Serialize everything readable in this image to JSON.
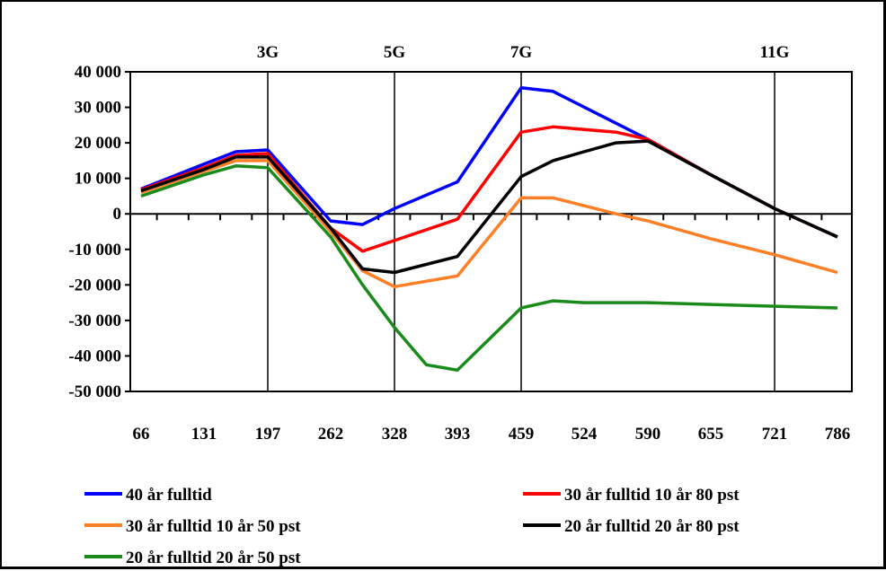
{
  "chart_data": {
    "type": "line",
    "title": "",
    "xlabel": "",
    "ylabel": "",
    "x_ticks": [
      "66",
      "131",
      "197",
      "262",
      "328",
      "393",
      "459",
      "524",
      "590",
      "655",
      "721",
      "786"
    ],
    "x_start": 66,
    "x_end": 786,
    "ylim": [
      -50000,
      40000
    ],
    "y_step": 10000,
    "y_tick_labels": [
      "40 000",
      "30 000",
      "20 000",
      "10 000",
      "0",
      "-10 000",
      "-20 000",
      "-30 000",
      "-40 000",
      "-50 000"
    ],
    "grid": false,
    "generation_markers": [
      {
        "label": "3G",
        "x": 197
      },
      {
        "label": "5G",
        "x": 328
      },
      {
        "label": "7G",
        "x": 459
      },
      {
        "label": "11G",
        "x": 721
      }
    ],
    "legend_position": "bottom",
    "series": [
      {
        "name": "40 år fulltid",
        "color": "#0000ff",
        "points": [
          [
            66,
            7000
          ],
          [
            131,
            14000
          ],
          [
            164,
            17500
          ],
          [
            197,
            18000
          ],
          [
            262,
            -2000
          ],
          [
            295,
            -3000
          ],
          [
            328,
            1500
          ],
          [
            393,
            9000
          ],
          [
            459,
            35500
          ],
          [
            492,
            34500
          ],
          [
            590,
            21000
          ],
          [
            655,
            11000
          ],
          [
            721,
            1500
          ],
          [
            786,
            -6500
          ]
        ]
      },
      {
        "name": "30 år fulltid 10 år 80 pst",
        "color": "#ff0000",
        "points": [
          [
            66,
            6800
          ],
          [
            131,
            13000
          ],
          [
            164,
            16500
          ],
          [
            197,
            17000
          ],
          [
            262,
            -4000
          ],
          [
            295,
            -10500
          ],
          [
            328,
            -7500
          ],
          [
            393,
            -1500
          ],
          [
            459,
            23000
          ],
          [
            492,
            24500
          ],
          [
            557,
            23000
          ],
          [
            590,
            21000
          ],
          [
            655,
            11000
          ],
          [
            721,
            1500
          ],
          [
            786,
            -6500
          ]
        ]
      },
      {
        "name": "30 år fulltid 10 år 50 pst",
        "color": "#ff7f27",
        "points": [
          [
            66,
            6000
          ],
          [
            131,
            12000
          ],
          [
            164,
            15000
          ],
          [
            197,
            15000
          ],
          [
            262,
            -5000
          ],
          [
            295,
            -16000
          ],
          [
            328,
            -20500
          ],
          [
            393,
            -17500
          ],
          [
            459,
            4500
          ],
          [
            492,
            4500
          ],
          [
            557,
            0
          ],
          [
            590,
            -2000
          ],
          [
            655,
            -7000
          ],
          [
            721,
            -11500
          ],
          [
            786,
            -16500
          ]
        ]
      },
      {
        "name": "20 år fulltid 20 år 80 pst",
        "color": "#000000",
        "points": [
          [
            66,
            6500
          ],
          [
            131,
            12500
          ],
          [
            164,
            16000
          ],
          [
            197,
            16000
          ],
          [
            262,
            -4000
          ],
          [
            295,
            -15500
          ],
          [
            328,
            -16500
          ],
          [
            393,
            -12000
          ],
          [
            459,
            10500
          ],
          [
            492,
            15000
          ],
          [
            524,
            17500
          ],
          [
            557,
            20000
          ],
          [
            590,
            20500
          ],
          [
            655,
            11000
          ],
          [
            721,
            1500
          ],
          [
            786,
            -6500
          ]
        ]
      },
      {
        "name": "20 år fulltid 20 år 50 pst",
        "color": "#1a8a1a",
        "points": [
          [
            66,
            5000
          ],
          [
            131,
            11000
          ],
          [
            164,
            13500
          ],
          [
            197,
            13000
          ],
          [
            262,
            -6500
          ],
          [
            295,
            -20000
          ],
          [
            328,
            -32000
          ],
          [
            361,
            -42500
          ],
          [
            393,
            -44000
          ],
          [
            459,
            -26500
          ],
          [
            492,
            -24500
          ],
          [
            524,
            -25000
          ],
          [
            590,
            -25000
          ],
          [
            655,
            -25500
          ],
          [
            721,
            -26000
          ],
          [
            786,
            -26500
          ]
        ]
      }
    ]
  }
}
